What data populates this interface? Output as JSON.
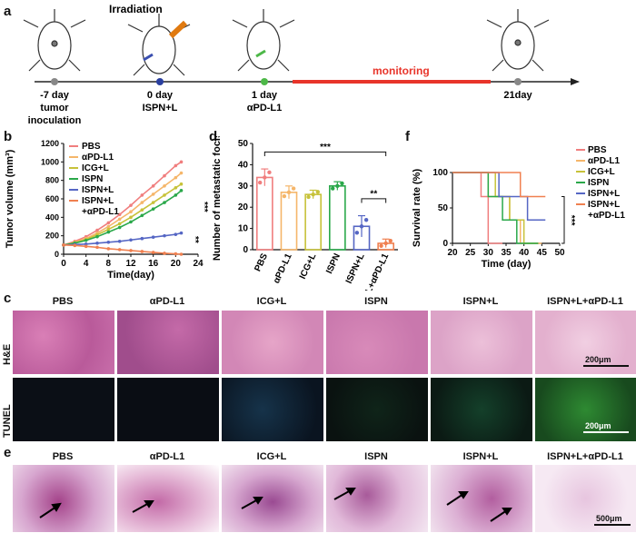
{
  "panel_labels": {
    "a": "a",
    "b": "b",
    "c": "c",
    "d": "d",
    "e": "e",
    "f": "f"
  },
  "timeline": {
    "irradiation": "Irradiation",
    "monitoring": "monitoring",
    "events": [
      {
        "day": "-7 day",
        "desc": "tumor\ninoculation",
        "color": "#888888"
      },
      {
        "day": "0 day",
        "desc": "ISPN+L",
        "color": "#2a3f9f"
      },
      {
        "day": "1 day",
        "desc": "αPD-L1",
        "color": "#4db848"
      },
      {
        "day": "21day",
        "desc": "",
        "color": "#888888"
      }
    ],
    "colors": {
      "monitor": "#e8342a",
      "axis": "#222222"
    }
  },
  "groups": [
    "PBS",
    "αPD-L1",
    "ICG+L",
    "ISPN",
    "ISPN+L",
    "ISPN+L+αPD-L1"
  ],
  "group_colors": [
    "#f07e7e",
    "#f5b66a",
    "#c7c23a",
    "#2aa84a",
    "#5566c4",
    "#f08050"
  ],
  "legend_b": [
    "PBS",
    "αPD-L1",
    "ICG+L",
    "ISPN",
    "ISPN+L",
    "ISPN+L",
    "+αPD-L1"
  ],
  "legend_f": [
    "PBS",
    "αPD-L1",
    "ICG+L",
    "ISPN",
    "ISPN+L",
    "ISPN+L",
    "+αPD-L1"
  ],
  "sig": {
    "b1": "***",
    "b2": "**",
    "d1": "***",
    "d2": "**",
    "f1": "***"
  },
  "chart_data": [
    {
      "type": "line",
      "panel": "b",
      "xlabel": "Time(day)",
      "ylabel": "Tumor volume (mm³)",
      "xlim": [
        0,
        24
      ],
      "ylim": [
        0,
        1200
      ],
      "xticks": [
        0,
        4,
        8,
        12,
        16,
        20,
        24
      ],
      "yticks": [
        0,
        200,
        400,
        600,
        800,
        1000,
        1200
      ],
      "x": [
        0,
        2,
        4,
        6,
        8,
        10,
        12,
        14,
        16,
        18,
        20,
        21
      ],
      "series": [
        {
          "name": "PBS",
          "values": [
            100,
            140,
            190,
            260,
            340,
            430,
            530,
            640,
            740,
            850,
            960,
            1000
          ]
        },
        {
          "name": "αPD-L1",
          "values": [
            100,
            130,
            170,
            230,
            300,
            380,
            460,
            560,
            650,
            740,
            830,
            880
          ]
        },
        {
          "name": "ICG+L",
          "values": [
            100,
            125,
            160,
            210,
            270,
            330,
            400,
            480,
            560,
            640,
            720,
            760
          ]
        },
        {
          "name": "ISPN",
          "values": [
            100,
            120,
            150,
            190,
            240,
            290,
            350,
            420,
            490,
            560,
            640,
            690
          ]
        },
        {
          "name": "ISPN+L",
          "values": [
            100,
            105,
            110,
            120,
            130,
            140,
            155,
            170,
            185,
            200,
            215,
            230
          ]
        },
        {
          "name": "ISPN+L+αPD-L1",
          "values": [
            100,
            95,
            85,
            75,
            60,
            50,
            40,
            30,
            20,
            10,
            5,
            0
          ]
        }
      ]
    },
    {
      "type": "bar",
      "panel": "d",
      "ylabel": "Number of metastatic focis",
      "categories": [
        "PBS",
        "αPD-L1",
        "ICG+L",
        "ISPN",
        "ISPN+L",
        "ISPN+L+αPD-L1"
      ],
      "values": [
        34,
        27,
        26,
        30,
        11,
        3
      ],
      "errors": [
        4,
        3,
        2,
        2,
        5,
        2
      ],
      "ylim": [
        0,
        50
      ],
      "yticks": [
        0,
        10,
        20,
        30,
        40,
        50
      ]
    },
    {
      "type": "line",
      "panel": "f",
      "xlabel": "Time (day)",
      "ylabel": "Survival rate (%)",
      "xlim": [
        20,
        50
      ],
      "ylim": [
        0,
        100
      ],
      "xticks": [
        20,
        25,
        30,
        35,
        40,
        45,
        50
      ],
      "yticks": [
        0,
        50,
        100
      ],
      "series": [
        {
          "name": "PBS",
          "points": [
            [
              20,
              100
            ],
            [
              28,
              100
            ],
            [
              28,
              66
            ],
            [
              30,
              66
            ],
            [
              30,
              0
            ],
            [
              34,
              0
            ]
          ]
        },
        {
          "name": "αPD-L1",
          "points": [
            [
              20,
              100
            ],
            [
              30,
              100
            ],
            [
              30,
              66
            ],
            [
              36,
              66
            ],
            [
              36,
              33
            ],
            [
              39,
              33
            ],
            [
              39,
              0
            ],
            [
              45,
              0
            ]
          ]
        },
        {
          "name": "ICG+L",
          "points": [
            [
              20,
              100
            ],
            [
              32,
              100
            ],
            [
              32,
              66
            ],
            [
              36,
              66
            ],
            [
              36,
              33
            ],
            [
              40,
              33
            ],
            [
              40,
              0
            ],
            [
              44,
              0
            ]
          ]
        },
        {
          "name": "ISPN",
          "points": [
            [
              20,
              100
            ],
            [
              30,
              100
            ],
            [
              30,
              66
            ],
            [
              34,
              66
            ],
            [
              34,
              33
            ],
            [
              38,
              33
            ],
            [
              38,
              0
            ],
            [
              44,
              0
            ]
          ]
        },
        {
          "name": "ISPN+L",
          "points": [
            [
              20,
              100
            ],
            [
              33,
              100
            ],
            [
              33,
              66
            ],
            [
              41,
              66
            ],
            [
              41,
              33
            ],
            [
              46,
              33
            ]
          ]
        },
        {
          "name": "ISPN+L+αPD-L1",
          "points": [
            [
              20,
              100
            ],
            [
              39,
              100
            ],
            [
              39,
              66
            ],
            [
              46,
              66
            ]
          ]
        }
      ]
    }
  ],
  "panel_c": {
    "headers": [
      "PBS",
      "αPD-L1",
      "ICG+L",
      "ISPN",
      "ISPN+L",
      "ISPN+L+αPD-L1"
    ],
    "row_labels": [
      "H&E",
      "TUNEL"
    ],
    "scale1": "200μm",
    "scale2": "200μm"
  },
  "panel_e": {
    "headers": [
      "PBS",
      "αPD-L1",
      "ICG+L",
      "ISPN",
      "ISPN+L",
      "ISPN+L+αPD-L1"
    ],
    "scale": "500μm"
  }
}
